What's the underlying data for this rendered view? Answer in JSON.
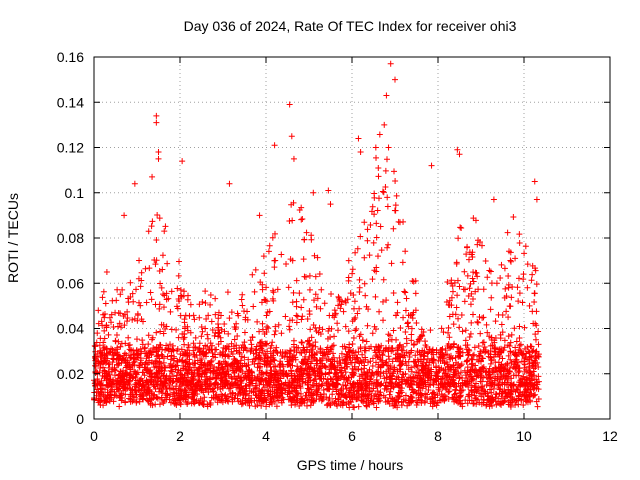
{
  "chart_data": {
    "type": "scatter",
    "title": "Day 036 of 2024, Rate Of TEC Index for receiver ohi3",
    "xlabel": "GPS time / hours",
    "ylabel": "ROTI / TECUs",
    "xlim": [
      0,
      12
    ],
    "ylim": [
      0,
      0.16
    ],
    "x_ticks": [
      "0",
      "2",
      "4",
      "6",
      "8",
      "10",
      "12"
    ],
    "y_ticks": [
      "0",
      "0.02",
      "0.04",
      "0.06",
      "0.08",
      "0.1",
      "0.12",
      "0.14",
      "0.16"
    ],
    "grid": true,
    "marker": "+",
    "color": "#ff0000",
    "series": [
      {
        "name": "ROTI",
        "time_range_hours": [
          0,
          10.35
        ],
        "dense_band": [
          0.005,
          0.03
        ],
        "notable_points": [
          {
            "x": 6.9,
            "y": 0.157
          },
          {
            "x": 7.0,
            "y": 0.15
          },
          {
            "x": 6.8,
            "y": 0.143
          },
          {
            "x": 6.75,
            "y": 0.13
          },
          {
            "x": 6.85,
            "y": 0.12
          },
          {
            "x": 4.55,
            "y": 0.139
          },
          {
            "x": 4.6,
            "y": 0.125
          },
          {
            "x": 4.65,
            "y": 0.115
          },
          {
            "x": 1.45,
            "y": 0.134
          },
          {
            "x": 1.45,
            "y": 0.131
          },
          {
            "x": 1.5,
            "y": 0.118
          },
          {
            "x": 1.5,
            "y": 0.115
          },
          {
            "x": 2.05,
            "y": 0.114
          },
          {
            "x": 4.2,
            "y": 0.121
          },
          {
            "x": 6.15,
            "y": 0.124
          },
          {
            "x": 6.2,
            "y": 0.118
          },
          {
            "x": 8.45,
            "y": 0.119
          },
          {
            "x": 8.5,
            "y": 0.117
          },
          {
            "x": 7.85,
            "y": 0.112
          },
          {
            "x": 1.35,
            "y": 0.107
          },
          {
            "x": 0.95,
            "y": 0.104
          },
          {
            "x": 3.15,
            "y": 0.104
          },
          {
            "x": 10.25,
            "y": 0.105
          },
          {
            "x": 10.3,
            "y": 0.097
          },
          {
            "x": 9.3,
            "y": 0.097
          },
          {
            "x": 5.45,
            "y": 0.101
          },
          {
            "x": 5.5,
            "y": 0.095
          },
          {
            "x": 5.1,
            "y": 0.1
          },
          {
            "x": 3.85,
            "y": 0.09
          },
          {
            "x": 0.7,
            "y": 0.09
          },
          {
            "x": 0.3,
            "y": 0.065
          },
          {
            "x": 0.1,
            "y": 0.048
          }
        ]
      }
    ]
  }
}
